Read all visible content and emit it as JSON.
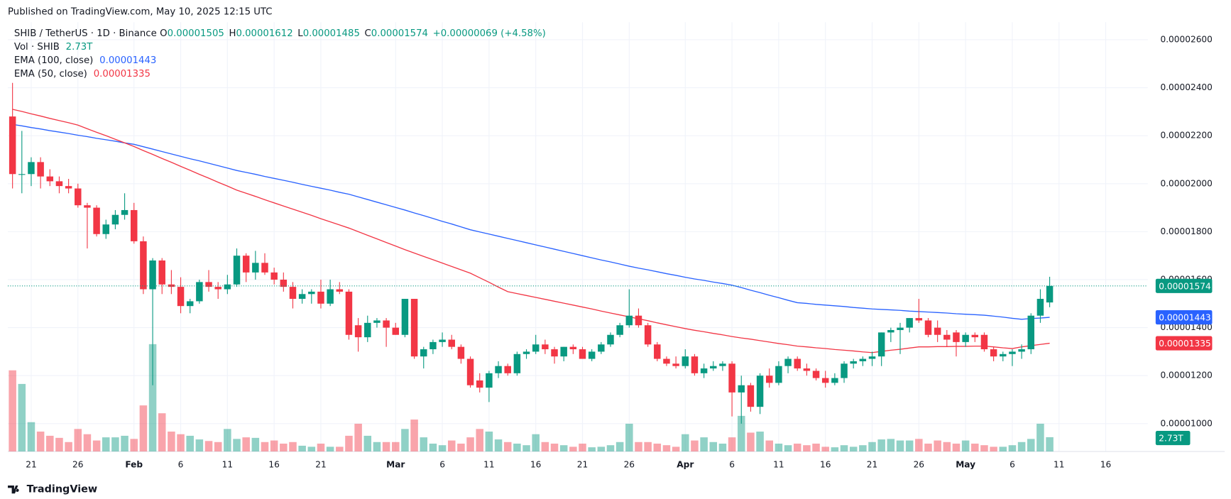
{
  "chart_data": {
    "type": "candlestick",
    "published": "Published on TradingView.com, May 10, 2025 12:15 UTC",
    "title": "SHIB / TetherUS · 1D · Binance",
    "legend_keys": [
      "O",
      "H",
      "L",
      "C"
    ],
    "legend_values": {
      "open": "0.00001505",
      "high": "0.00001612",
      "low": "0.00001485",
      "close": "0.00001574",
      "change": "+0.00000069 (+4.58%)"
    },
    "footer": "TradingView",
    "up_color": "#089981",
    "down_color": "#f23645",
    "categories": [
      null,
      null,
      "21",
      null,
      null,
      null,
      null,
      "26",
      null,
      null,
      null,
      null,
      null,
      "Feb",
      null,
      null,
      null,
      null,
      "6",
      null,
      null,
      null,
      null,
      "11",
      null,
      null,
      null,
      null,
      "16",
      null,
      null,
      null,
      null,
      "21",
      null,
      null,
      null,
      null,
      null,
      null,
      null,
      "Mar",
      null,
      null,
      null,
      null,
      "6",
      null,
      null,
      null,
      null,
      "11",
      null,
      null,
      null,
      null,
      "16",
      null,
      null,
      null,
      null,
      "21",
      null,
      null,
      null,
      null,
      "26",
      null,
      null,
      null,
      null,
      null,
      "Apr",
      null,
      null,
      null,
      null,
      "6",
      null,
      null,
      null,
      null,
      "11",
      null,
      null,
      null,
      null,
      "16",
      null,
      null,
      null,
      null,
      "21",
      null,
      null,
      null,
      null,
      "26",
      null,
      null,
      null,
      null,
      "May",
      null,
      null,
      null,
      null,
      "6",
      null,
      null,
      null,
      null,
      "11",
      null,
      null,
      null,
      null,
      "16",
      null,
      null,
      null,
      null
    ],
    "open": [
      2.28e-05,
      2.04e-05,
      2.04e-05,
      2.09e-05,
      2.03e-05,
      2.01e-05,
      1.99e-05,
      1.98e-05,
      1.91e-05,
      1.9e-05,
      1.79e-05,
      1.83e-05,
      1.87e-05,
      1.89e-05,
      1.76e-05,
      1.56e-05,
      1.68e-05,
      1.58e-05,
      1.57e-05,
      1.49e-05,
      1.51e-05,
      1.59e-05,
      1.57e-05,
      1.56e-05,
      1.58e-05,
      1.7e-05,
      1.63e-05,
      1.67e-05,
      1.63e-05,
      1.6e-05,
      1.57e-05,
      1.52e-05,
      1.54e-05,
      1.55e-05,
      1.5e-05,
      1.56e-05,
      1.55e-05,
      1.41e-05,
      1.36e-05,
      1.42e-05,
      1.43e-05,
      1.4e-05,
      1.37e-05,
      1.52e-05,
      1.28e-05,
      1.31e-05,
      1.34e-05,
      1.35e-05,
      1.32e-05,
      1.27e-05,
      1.18e-05,
      1.15e-05,
      1.21e-05,
      1.24e-05,
      1.21e-05,
      1.29e-05,
      1.3e-05,
      1.33e-05,
      1.31e-05,
      1.28e-05,
      1.32e-05,
      1.31e-05,
      1.27e-05,
      1.3e-05,
      1.33e-05,
      1.37e-05,
      1.41e-05,
      1.45e-05,
      1.41e-05,
      1.33e-05,
      1.27e-05,
      1.25e-05,
      1.24e-05,
      1.28e-05,
      1.21e-05,
      1.23e-05,
      1.24e-05,
      1.25e-05,
      1.13e-05,
      1.16e-05,
      1.07e-05,
      1.2e-05,
      1.17e-05,
      1.24e-05,
      1.27e-05,
      1.23e-05,
      1.22e-05,
      1.19e-05,
      1.17e-05,
      1.19e-05,
      1.25e-05,
      1.26e-05,
      1.27e-05,
      1.28e-05,
      1.38e-05,
      1.39e-05,
      1.4e-05,
      1.44e-05,
      1.43e-05,
      1.4e-05,
      1.37e-05,
      1.38e-05,
      1.34e-05,
      1.37e-05,
      1.37e-05,
      1.31e-05,
      1.28e-05,
      1.29e-05,
      1.3e-05,
      1.31e-05,
      1.45e-05,
      1.505e-05,
      null,
      null,
      null,
      null,
      null,
      null,
      null,
      null,
      null,
      null
    ],
    "high": [
      2.42e-05,
      2.22e-05,
      2.11e-05,
      2.11e-05,
      2.06e-05,
      2.03e-05,
      2.02e-05,
      2e-05,
      1.92e-05,
      1.91e-05,
      1.85e-05,
      1.89e-05,
      1.96e-05,
      1.92e-05,
      1.78e-05,
      1.69e-05,
      1.69e-05,
      1.64e-05,
      1.61e-05,
      1.52e-05,
      1.6e-05,
      1.64e-05,
      1.59e-05,
      1.62e-05,
      1.73e-05,
      1.71e-05,
      1.72e-05,
      1.71e-05,
      1.65e-05,
      1.63e-05,
      1.59e-05,
      1.56e-05,
      1.56e-05,
      1.6e-05,
      1.6e-05,
      1.59e-05,
      1.56e-05,
      1.44e-05,
      1.45e-05,
      1.44e-05,
      1.44e-05,
      1.42e-05,
      1.52e-05,
      1.52e-05,
      1.32e-05,
      1.35e-05,
      1.38e-05,
      1.37e-05,
      1.33e-05,
      1.28e-05,
      1.21e-05,
      1.22e-05,
      1.26e-05,
      1.25e-05,
      1.3e-05,
      1.31e-05,
      1.37e-05,
      1.35e-05,
      1.32e-05,
      1.32e-05,
      1.33e-05,
      1.32e-05,
      1.31e-05,
      1.34e-05,
      1.38e-05,
      1.42e-05,
      1.56e-05,
      1.48e-05,
      1.42e-05,
      1.34e-05,
      1.28e-05,
      1.28e-05,
      1.31e-05,
      1.29e-05,
      1.25e-05,
      1.26e-05,
      1.26e-05,
      1.26e-05,
      1.2e-05,
      1.17e-05,
      1.21e-05,
      1.23e-05,
      1.26e-05,
      1.28e-05,
      1.28e-05,
      1.25e-05,
      1.23e-05,
      1.22e-05,
      1.21e-05,
      1.26e-05,
      1.27e-05,
      1.28e-05,
      1.3e-05,
      1.38e-05,
      1.4e-05,
      1.42e-05,
      1.44e-05,
      1.52e-05,
      1.44e-05,
      1.43e-05,
      1.39e-05,
      1.39e-05,
      1.38e-05,
      1.38e-05,
      1.38e-05,
      1.32e-05,
      1.3e-05,
      1.31e-05,
      1.33e-05,
      1.46e-05,
      1.56e-05,
      1.612e-05,
      null,
      null,
      null,
      null,
      null,
      null,
      null,
      null,
      null,
      null
    ],
    "low": [
      1.98e-05,
      1.96e-05,
      1.99e-05,
      1.98e-05,
      1.99e-05,
      1.96e-05,
      1.96e-05,
      1.9e-05,
      1.73e-05,
      1.78e-05,
      1.77e-05,
      1.81e-05,
      1.85e-05,
      1.75e-05,
      1.54e-05,
      1.16e-05,
      1.54e-05,
      1.54e-05,
      1.46e-05,
      1.46e-05,
      1.5e-05,
      1.55e-05,
      1.52e-05,
      1.54e-05,
      1.57e-05,
      1.59e-05,
      1.6e-05,
      1.62e-05,
      1.58e-05,
      1.55e-05,
      1.48e-05,
      1.5e-05,
      1.5e-05,
      1.48e-05,
      1.49e-05,
      1.54e-05,
      1.35e-05,
      1.3e-05,
      1.34e-05,
      1.4e-05,
      1.32e-05,
      1.37e-05,
      1.36e-05,
      1.27e-05,
      1.23e-05,
      1.29e-05,
      1.32e-05,
      1.31e-05,
      1.25e-05,
      1.15e-05,
      1.13e-05,
      1.09e-05,
      1.19e-05,
      1.2e-05,
      1.2e-05,
      1.27e-05,
      1.29e-05,
      1.29e-05,
      1.25e-05,
      1.26e-05,
      1.29e-05,
      1.27e-05,
      1.26e-05,
      1.29e-05,
      1.32e-05,
      1.36e-05,
      1.4e-05,
      1.4e-05,
      1.32e-05,
      1.26e-05,
      1.24e-05,
      1.23e-05,
      1.23e-05,
      1.2e-05,
      1.19e-05,
      1.22e-05,
      1.22e-05,
      1.03e-05,
      1e-05,
      1.05e-05,
      1.04e-05,
      1.15e-05,
      1.16e-05,
      1.21e-05,
      1.22e-05,
      1.2e-05,
      1.18e-05,
      1.15e-05,
      1.16e-05,
      1.17e-05,
      1.23e-05,
      1.24e-05,
      1.24e-05,
      1.24e-05,
      1.34e-05,
      1.29e-05,
      1.38e-05,
      1.42e-05,
      1.36e-05,
      1.34e-05,
      1.32e-05,
      1.28e-05,
      1.32e-05,
      1.34e-05,
      1.3e-05,
      1.26e-05,
      1.26e-05,
      1.24e-05,
      1.27e-05,
      1.29e-05,
      1.42e-05,
      1.485e-05,
      null,
      null,
      null,
      null,
      null,
      null,
      null,
      null,
      null,
      null
    ],
    "close": [
      2.04e-05,
      2.04e-05,
      2.09e-05,
      2.03e-05,
      2.01e-05,
      1.99e-05,
      1.98e-05,
      1.91e-05,
      1.9e-05,
      1.79e-05,
      1.83e-05,
      1.87e-05,
      1.89e-05,
      1.76e-05,
      1.56e-05,
      1.68e-05,
      1.58e-05,
      1.57e-05,
      1.49e-05,
      1.51e-05,
      1.59e-05,
      1.57e-05,
      1.56e-05,
      1.58e-05,
      1.7e-05,
      1.63e-05,
      1.67e-05,
      1.63e-05,
      1.6e-05,
      1.57e-05,
      1.52e-05,
      1.54e-05,
      1.55e-05,
      1.5e-05,
      1.56e-05,
      1.55e-05,
      1.37e-05,
      1.36e-05,
      1.42e-05,
      1.43e-05,
      1.4e-05,
      1.37e-05,
      1.52e-05,
      1.28e-05,
      1.31e-05,
      1.34e-05,
      1.35e-05,
      1.32e-05,
      1.27e-05,
      1.16e-05,
      1.15e-05,
      1.21e-05,
      1.24e-05,
      1.21e-05,
      1.29e-05,
      1.3e-05,
      1.33e-05,
      1.31e-05,
      1.28e-05,
      1.32e-05,
      1.31e-05,
      1.27e-05,
      1.3e-05,
      1.33e-05,
      1.37e-05,
      1.41e-05,
      1.45e-05,
      1.41e-05,
      1.33e-05,
      1.27e-05,
      1.25e-05,
      1.24e-05,
      1.28e-05,
      1.21e-05,
      1.23e-05,
      1.24e-05,
      1.25e-05,
      1.13e-05,
      1.16e-05,
      1.07e-05,
      1.2e-05,
      1.17e-05,
      1.24e-05,
      1.27e-05,
      1.23e-05,
      1.22e-05,
      1.19e-05,
      1.17e-05,
      1.19e-05,
      1.25e-05,
      1.26e-05,
      1.27e-05,
      1.28e-05,
      1.38e-05,
      1.39e-05,
      1.4e-05,
      1.44e-05,
      1.43e-05,
      1.37e-05,
      1.37e-05,
      1.35e-05,
      1.34e-05,
      1.37e-05,
      1.36e-05,
      1.31e-05,
      1.28e-05,
      1.29e-05,
      1.3e-05,
      1.31e-05,
      1.45e-05,
      1.52e-05,
      1.574e-05,
      null,
      null,
      null,
      null,
      null,
      null,
      null,
      null,
      null,
      null
    ],
    "volume": {
      "name": "Vol · SHIB",
      "values": [
        15.5,
        12.9,
        5.6,
        3.8,
        3.0,
        2.6,
        1.8,
        4.3,
        3.3,
        2.1,
        2.7,
        2.7,
        3.0,
        2.4,
        8.8,
        20.5,
        7.3,
        3.8,
        3.3,
        3.0,
        2.3,
        2.0,
        1.8,
        4.3,
        2.4,
        2.7,
        2.6,
        1.8,
        2.1,
        1.5,
        1.8,
        1.1,
        0.9,
        1.5,
        0.9,
        0.9,
        3.0,
        5.3,
        3.0,
        1.8,
        1.8,
        1.8,
        4.3,
        6.1,
        2.7,
        1.5,
        1.2,
        2.1,
        1.5,
        2.7,
        4.3,
        3.8,
        2.3,
        1.8,
        1.5,
        1.2,
        3.3,
        1.8,
        1.5,
        1.2,
        0.9,
        1.5,
        0.8,
        0.9,
        1.2,
        1.8,
        5.3,
        1.8,
        1.8,
        1.5,
        1.2,
        0.9,
        3.3,
        2.1,
        2.7,
        1.8,
        1.5,
        2.7,
        6.8,
        3.6,
        3.8,
        2.1,
        1.5,
        1.2,
        1.5,
        1.2,
        1.5,
        0.9,
        0.8,
        1.2,
        0.9,
        1.2,
        1.8,
        2.3,
        2.4,
        2.1,
        2.1,
        2.4,
        1.5,
        2.1,
        1.8,
        1.5,
        2.1,
        1.5,
        1.2,
        0.9,
        0.9,
        1.2,
        1.8,
        2.4,
        5.3,
        2.73,
        null,
        null,
        null,
        null,
        null,
        null,
        null,
        null,
        null,
        null
      ],
      "value_label": "2.73T"
    },
    "volume_ylim": [
      0,
      82
    ],
    "series": [
      {
        "name": "EMA (100, close)",
        "color": "#2962ff",
        "value_label": "0.00001443",
        "values": [
          2.247e-05,
          2.241e-05,
          2.234e-05,
          2.228e-05,
          2.221e-05,
          2.215e-05,
          2.209e-05,
          2.202e-05,
          2.196e-05,
          2.189e-05,
          2.183e-05,
          2.177e-05,
          2.17e-05,
          2.164e-05,
          2.154e-05,
          2.144e-05,
          2.134e-05,
          2.124e-05,
          2.114e-05,
          2.104e-05,
          2.095e-05,
          2.085e-05,
          2.075e-05,
          2.065e-05,
          2.055e-05,
          2.047e-05,
          2.039e-05,
          2.03e-05,
          2.022e-05,
          2.014e-05,
          2.006e-05,
          1.997e-05,
          1.989e-05,
          1.981e-05,
          1.973e-05,
          1.964e-05,
          1.956e-05,
          1.945e-05,
          1.934e-05,
          1.923e-05,
          1.912e-05,
          1.901e-05,
          1.89e-05,
          1.878e-05,
          1.867e-05,
          1.855e-05,
          1.843e-05,
          1.832e-05,
          1.82e-05,
          1.808e-05,
          1.799e-05,
          1.79e-05,
          1.781e-05,
          1.772e-05,
          1.763e-05,
          1.754e-05,
          1.745e-05,
          1.736e-05,
          1.727e-05,
          1.718e-05,
          1.709e-05,
          1.7e-05,
          1.691e-05,
          1.682e-05,
          1.674e-05,
          1.665e-05,
          1.656e-05,
          1.648e-05,
          1.641e-05,
          1.633e-05,
          1.625e-05,
          1.618e-05,
          1.61e-05,
          1.603e-05,
          1.597e-05,
          1.59e-05,
          1.584e-05,
          1.577e-05,
          1.567e-05,
          1.556e-05,
          1.546e-05,
          1.535e-05,
          1.525e-05,
          1.514e-05,
          1.504e-05,
          1.501e-05,
          1.497e-05,
          1.494e-05,
          1.491e-05,
          1.488e-05,
          1.484e-05,
          1.481e-05,
          1.478e-05,
          1.476e-05,
          1.474e-05,
          1.472e-05,
          1.469e-05,
          1.467e-05,
          1.465e-05,
          1.463e-05,
          1.461e-05,
          1.458e-05,
          1.456e-05,
          1.454e-05,
          1.452e-05,
          1.448e-05,
          1.444e-05,
          1.439e-05,
          1.435e-05,
          1.438e-05,
          1.44e-05,
          1.443e-05,
          null,
          null,
          null,
          null,
          null,
          null,
          null,
          null,
          null,
          null
        ]
      },
      {
        "name": "EMA (50, close)",
        "color": "#f23645",
        "value_label": "0.00001335",
        "values": [
          2.31e-05,
          2.301e-05,
          2.291e-05,
          2.282e-05,
          2.272e-05,
          2.263e-05,
          2.254e-05,
          2.244e-05,
          2.229e-05,
          2.214e-05,
          2.2e-05,
          2.185e-05,
          2.17e-05,
          2.155e-05,
          2.138e-05,
          2.122e-05,
          2.105e-05,
          2.089e-05,
          2.072e-05,
          2.056e-05,
          2.039e-05,
          2.023e-05,
          2.006e-05,
          1.99e-05,
          1.973e-05,
          1.96e-05,
          1.947e-05,
          1.933e-05,
          1.92e-05,
          1.907e-05,
          1.894e-05,
          1.881e-05,
          1.868e-05,
          1.854e-05,
          1.841e-05,
          1.828e-05,
          1.815e-05,
          1.8e-05,
          1.785e-05,
          1.77e-05,
          1.755e-05,
          1.74e-05,
          1.725e-05,
          1.711e-05,
          1.697e-05,
          1.683e-05,
          1.669e-05,
          1.655e-05,
          1.641e-05,
          1.627e-05,
          1.608e-05,
          1.589e-05,
          1.569e-05,
          1.55e-05,
          1.542e-05,
          1.534e-05,
          1.526e-05,
          1.518e-05,
          1.51e-05,
          1.502e-05,
          1.494e-05,
          1.486e-05,
          1.478e-05,
          1.469e-05,
          1.461e-05,
          1.453e-05,
          1.445e-05,
          1.437e-05,
          1.429e-05,
          1.42e-05,
          1.412e-05,
          1.404e-05,
          1.396e-05,
          1.389e-05,
          1.383e-05,
          1.376e-05,
          1.37e-05,
          1.363e-05,
          1.357e-05,
          1.352e-05,
          1.346e-05,
          1.34e-05,
          1.334e-05,
          1.329e-05,
          1.323e-05,
          1.32e-05,
          1.316e-05,
          1.313e-05,
          1.309e-05,
          1.306e-05,
          1.303e-05,
          1.299e-05,
          1.296e-05,
          1.301e-05,
          1.306e-05,
          1.31e-05,
          1.315e-05,
          1.32e-05,
          1.32e-05,
          1.321e-05,
          1.321e-05,
          1.322e-05,
          1.322e-05,
          1.323e-05,
          1.323e-05,
          1.32e-05,
          1.316e-05,
          1.313e-05,
          1.32e-05,
          1.325e-05,
          1.33e-05,
          1.335e-05,
          null,
          null,
          null,
          null,
          null,
          null,
          null,
          null,
          null,
          null
        ]
      }
    ],
    "ylim": [
      8.84e-06,
      2.673e-05
    ],
    "yticks": [
      {
        "value": 1e-05,
        "label": "0.00001000"
      },
      {
        "value": 1.2e-05,
        "label": "0.00001200"
      },
      {
        "value": 1.4e-05,
        "label": "0.00001400"
      },
      {
        "value": 1.6e-05,
        "label": "0.00001600"
      },
      {
        "value": 1.8e-05,
        "label": "0.00001800"
      },
      {
        "value": 2e-05,
        "label": "0.00002000"
      },
      {
        "value": 2.2e-05,
        "label": "0.00002200"
      },
      {
        "value": 2.4e-05,
        "label": "0.00002400"
      },
      {
        "value": 2.6e-05,
        "label": "0.00002600"
      }
    ],
    "grid": true
  }
}
